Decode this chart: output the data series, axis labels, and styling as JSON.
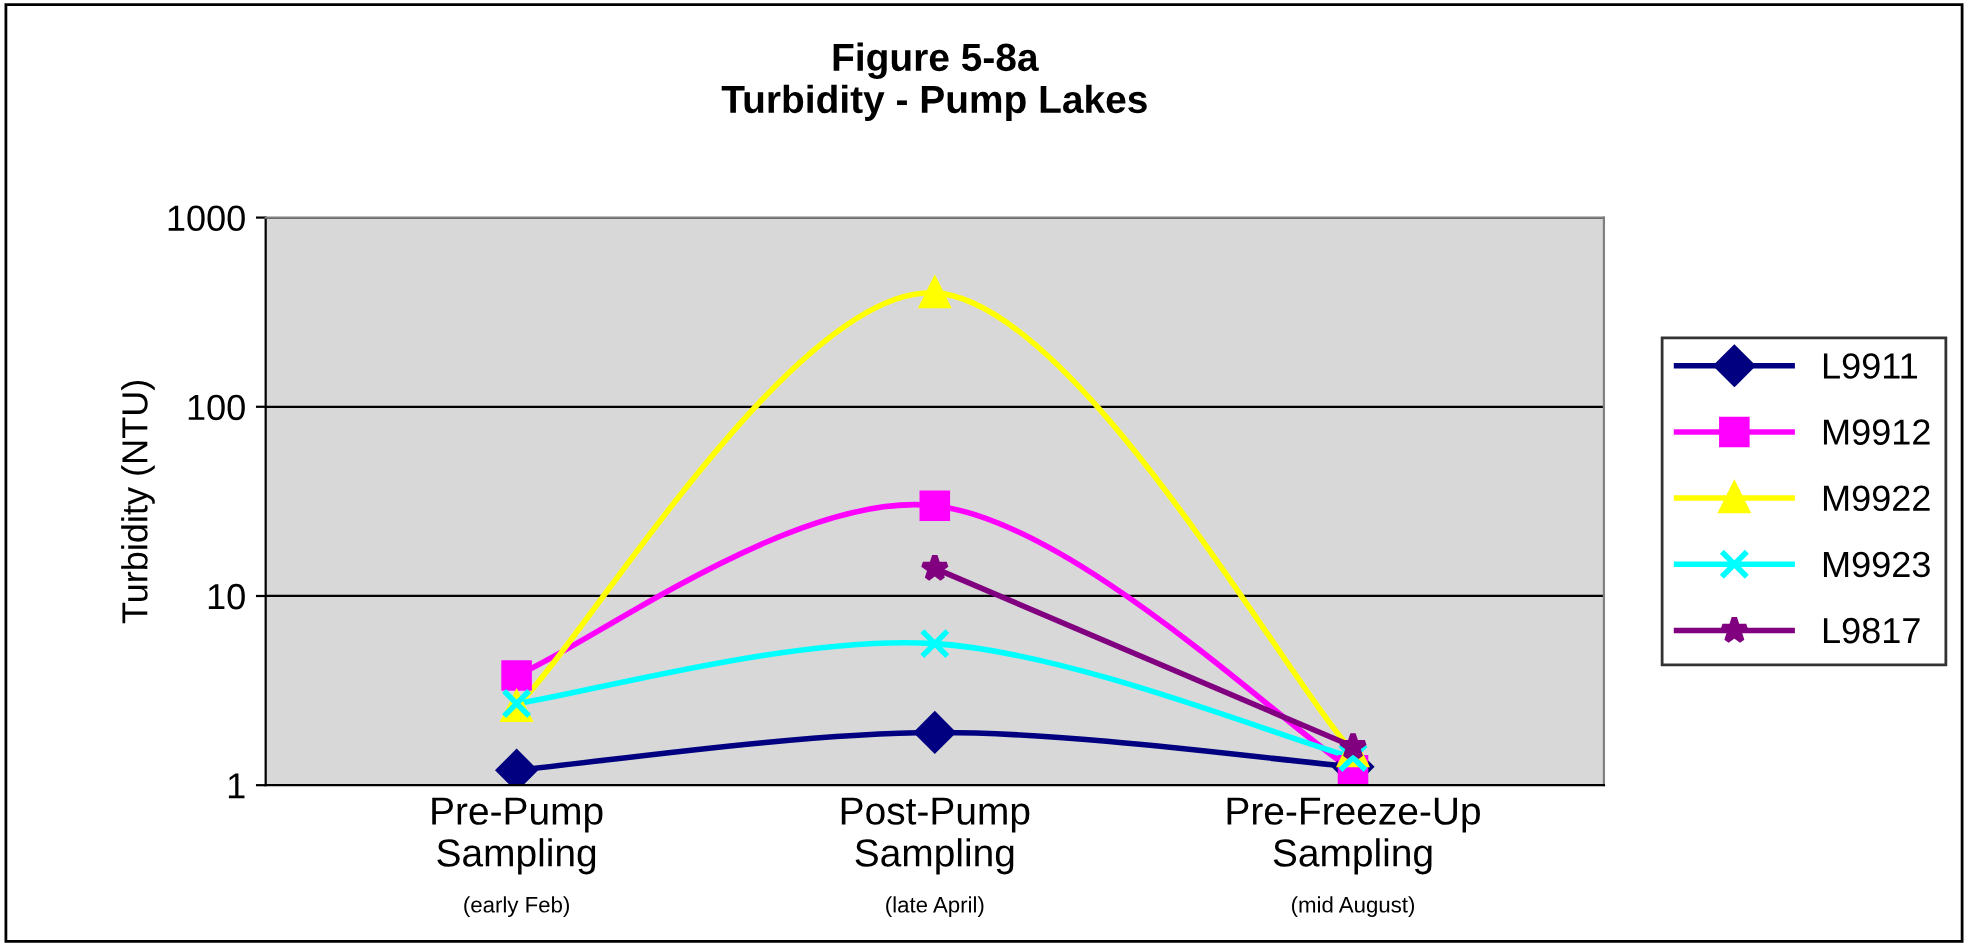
{
  "chart_data": {
    "type": "line",
    "title": "Figure 5-8a\nTurbidity - Pump Lakes",
    "ylabel": "Turbidity (NTU)",
    "categories": [
      "Pre-Pump\nSampling\n(early Feb)",
      "Post-Pump\nSampling\n(late April)",
      "Pre-Freeze-Up\nSampling\n(mid August)"
    ],
    "series": [
      {
        "name": "L9911",
        "color": "#000080",
        "marker": "diamond",
        "values": [
          1.2,
          1.9,
          1.25
        ]
      },
      {
        "name": "M9912",
        "color": "#ff00ff",
        "marker": "square",
        "values": [
          3.8,
          30,
          1.2
        ]
      },
      {
        "name": "M9922",
        "color": "#ffff00",
        "marker": "triangle",
        "values": [
          2.6,
          400,
          1.5
        ]
      },
      {
        "name": "M9923",
        "color": "#00ffff",
        "marker": "cross",
        "values": [
          2.7,
          5.6,
          1.4
        ]
      },
      {
        "name": "L9817",
        "color": "#800080",
        "marker": "star",
        "values": [
          null,
          14,
          1.6
        ]
      }
    ],
    "log": true,
    "ylim": [
      1,
      1000
    ],
    "yticks": [
      1,
      10,
      100,
      1000
    ],
    "grid": "y",
    "legend": "right"
  }
}
